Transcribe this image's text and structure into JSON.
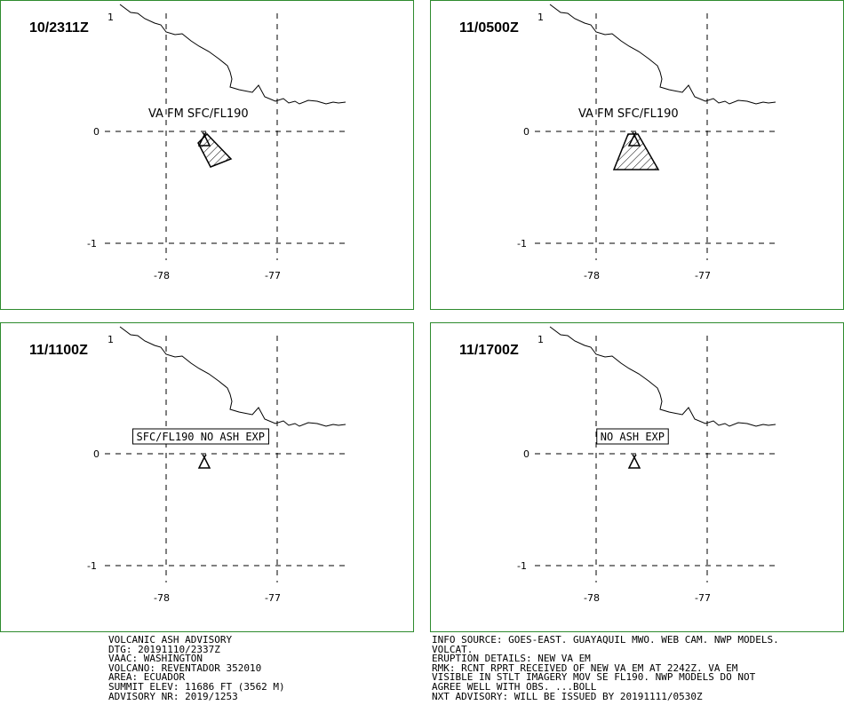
{
  "panels": [
    {
      "time": "10/2311Z",
      "marker": "1",
      "lat_ticks": [
        "0",
        "-1"
      ],
      "lon_ticks": [
        "-78",
        "-77"
      ],
      "label": "VA FM SFC/FL190",
      "label_boxed": false,
      "ash_shape": "small"
    },
    {
      "time": "11/0500Z",
      "marker": "1",
      "lat_ticks": [
        "0",
        "-1"
      ],
      "lon_ticks": [
        "-78",
        "-77"
      ],
      "label": "VA FM SFC/FL190",
      "label_boxed": false,
      "ash_shape": "large"
    },
    {
      "time": "11/1100Z",
      "marker": "1",
      "lat_ticks": [
        "0",
        "-1"
      ],
      "lon_ticks": [
        "-78",
        "-77"
      ],
      "label": "SFC/FL190 NO ASH EXP",
      "label_boxed": true,
      "ash_shape": "none"
    },
    {
      "time": "11/1700Z",
      "marker": "1",
      "lat_ticks": [
        "0",
        "-1"
      ],
      "lon_ticks": [
        "-78",
        "-77"
      ],
      "label": "NO ASH EXP",
      "label_boxed": true,
      "ash_shape": "none"
    }
  ],
  "advisory_left": [
    "VOLCANIC ASH ADVISORY",
    "DTG: 20191110/2337Z",
    "VAAC: WASHINGTON",
    "VOLCANO: REVENTADOR 352010",
    "AREA: ECUADOR",
    "SUMMIT ELEV: 11686 FT (3562 M)",
    "ADVISORY NR: 2019/1253"
  ],
  "advisory_right": [
    "INFO SOURCE: GOES-EAST. GUAYAQUIL MWO. WEB CAM. NWP MODELS.",
    "VOLCAT.",
    "ERUPTION DETAILS: NEW VA EM",
    "RMK: RCNT RPRT RECEIVED OF NEW VA EM AT 2242Z. VA EM",
    "VISIBLE IN STLT IMAGERY MOV SE FL190. NWP MODELS DO NOT",
    "AGREE WELL WITH OBS. ...BOLL",
    "NXT ADVISORY: WILL BE ISSUED BY 20191111/0530Z"
  ],
  "colors": {
    "panel_border": "#2e8b2e",
    "lines": "#000000",
    "background": "#ffffff"
  }
}
